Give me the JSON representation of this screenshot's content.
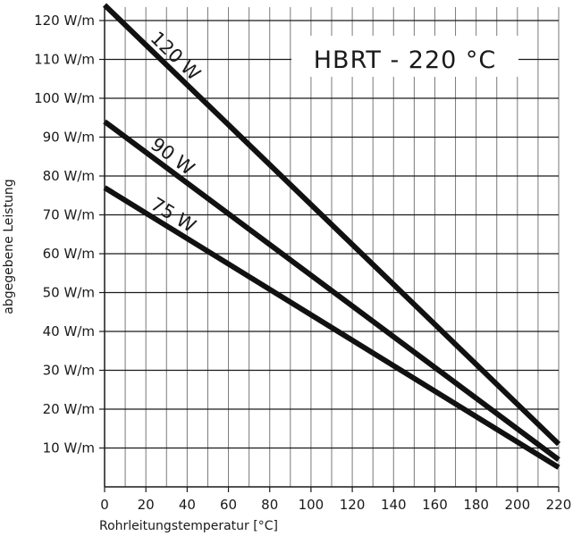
{
  "chart_data": {
    "type": "line",
    "title": "HBRT  -  220  °C",
    "xlabel": "Rohrleitungstemperatur  [°C]",
    "ylabel": "abgegebene  Leistung",
    "xlim": [
      0,
      220
    ],
    "ylim": [
      0,
      120
    ],
    "x_ticks": [
      0,
      20,
      40,
      60,
      80,
      100,
      120,
      140,
      160,
      180,
      200,
      220
    ],
    "x_tick_labels": [
      "0",
      "20",
      "40",
      "60",
      "80",
      "100",
      "120",
      "140",
      "160",
      "180",
      "200",
      "220"
    ],
    "y_ticks": [
      10,
      20,
      30,
      40,
      50,
      60,
      70,
      80,
      90,
      100,
      110,
      120
    ],
    "y_tick_labels": [
      "10  W/m",
      "20  W/m",
      "30  W/m",
      "40  W/m",
      "50  W/m",
      "60  W/m",
      "70  W/m",
      "80  W/m",
      "90  W/m",
      "100  W/m",
      "110  W/m",
      "120  W/m"
    ],
    "grid": {
      "vertical_step": 10,
      "horizontal_step": 10
    },
    "series": [
      {
        "name": "120 W",
        "x": [
          0,
          220
        ],
        "y": [
          124,
          11
        ]
      },
      {
        "name": "90 W",
        "x": [
          0,
          220
        ],
        "y": [
          94,
          7
        ]
      },
      {
        "name": "75 W",
        "x": [
          0,
          220
        ],
        "y": [
          77,
          5
        ]
      }
    ],
    "line_color": "#111111"
  }
}
